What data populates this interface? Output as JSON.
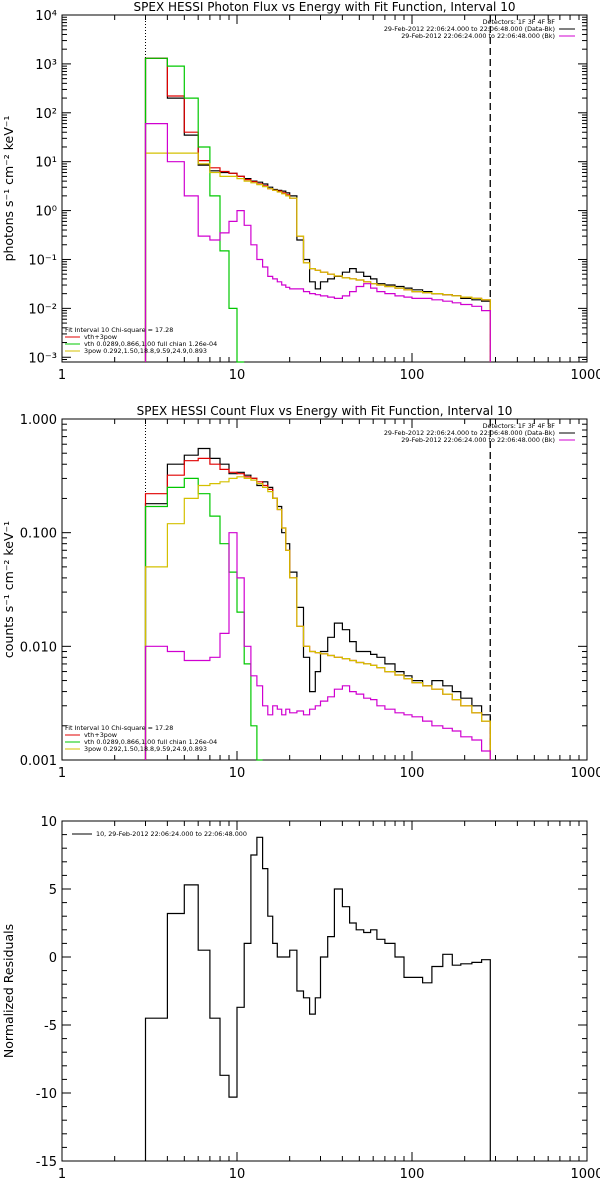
{
  "chart_data": [
    {
      "type": "line",
      "title": "SPEX HESSI Photon Flux vs Energy with Fit Function, Interval 10",
      "ylabel": "photons s⁻¹ cm⁻² keV⁻¹",
      "xlabel": "",
      "xscale": "log",
      "yscale": "log",
      "xlim": [
        1,
        1000
      ],
      "ylim": [
        0.0008,
        10000
      ],
      "x_ticks": [
        1,
        10,
        100,
        1000
      ],
      "x_tick_labels": [
        "1",
        "10",
        "100",
        "1000"
      ],
      "y_ticks": [
        0.001,
        0.01,
        0.1,
        1,
        10,
        100,
        1000,
        10000
      ],
      "y_tick_labels": [
        "10⁻³",
        "10⁻²",
        "10⁻¹",
        "10⁰",
        "10¹",
        "10²",
        "10³",
        "10⁴"
      ],
      "fit_range_lines": [
        3.0,
        280
      ],
      "legend_top_right": [
        "Detectors: 1F 3F 4F 8F",
        "29-Feb-2012 22:06:24.000 to 22:06:48.000 (Data-Bk)",
        "29-Feb-2012 22:06:24.000 to 22:06:48.000 (Bk)"
      ],
      "legend_bottom_left": {
        "header": "Fit Interval 10    Chi-square = 17.28",
        "entries": [
          "vth+3pow",
          "vth 0.0289,0.866,1.00  full chian 1.26e-04",
          "3pow 0.292,1.50,18.8,9.59,24.9,0.893"
        ]
      },
      "series": [
        {
          "color": "#000000",
          "edges": [
            3.0,
            4.0,
            5.0,
            6.0,
            7.0,
            8.0,
            9.0,
            10.0,
            11.0,
            12.0,
            13.0,
            14.0,
            15.0,
            16.0,
            17.0,
            18.0,
            19.0,
            20.0,
            22.0,
            24.0,
            26.0,
            28.0,
            30.0,
            33.0,
            36.0,
            40.0,
            44.0,
            48.0,
            53.0,
            58.0,
            63.0,
            70.0,
            80.0,
            90.0,
            100.0,
            115.0,
            130.0,
            150.0,
            170.0,
            190.0,
            220.0,
            250.0,
            280.0
          ],
          "values": [
            1300,
            200,
            35,
            8.5,
            6.5,
            6.0,
            5.8,
            5.0,
            4.5,
            4.0,
            3.8,
            3.5,
            3.0,
            2.7,
            2.6,
            2.5,
            2.3,
            2.0,
            0.25,
            0.1,
            0.035,
            0.025,
            0.035,
            0.04,
            0.045,
            0.055,
            0.065,
            0.055,
            0.045,
            0.04,
            0.032,
            0.03,
            0.028,
            0.026,
            0.024,
            0.022,
            0.02,
            0.019,
            0.018,
            0.016,
            0.015,
            0.014
          ]
        },
        {
          "color": "#e00000",
          "edges": [
            3.0,
            4.0,
            5.0,
            6.0,
            7.0,
            8.0,
            9.0,
            10.0,
            11.0,
            12.0,
            13.0,
            14.0,
            15.0,
            16.0,
            17.0,
            18.0,
            19.0,
            20.0,
            22.0,
            24.0,
            26.0,
            28.0,
            30.0,
            33.0,
            36.0,
            40.0,
            44.0,
            48.0,
            53.0,
            58.0,
            63.0,
            70.0,
            80.0,
            90.0,
            100.0,
            115.0,
            130.0,
            150.0,
            170.0,
            190.0,
            220.0,
            250.0,
            280.0
          ],
          "values": [
            1300,
            220,
            40,
            10.5,
            7.5,
            6.3,
            5.8,
            5.0,
            4.3,
            3.9,
            3.5,
            3.2,
            2.8,
            2.6,
            2.5,
            2.3,
            2.1,
            1.8,
            0.3,
            0.085,
            0.065,
            0.06,
            0.055,
            0.05,
            0.046,
            0.042,
            0.04,
            0.038,
            0.035,
            0.032,
            0.03,
            0.028,
            0.026,
            0.024,
            0.022,
            0.021,
            0.02,
            0.019,
            0.018,
            0.017,
            0.016,
            0.015
          ]
        },
        {
          "color": "#00c800",
          "edges": [
            3.0,
            4.0,
            5.0,
            6.0,
            7.0,
            8.0,
            9.0,
            10.0,
            11.0
          ],
          "values": [
            1300,
            900,
            200,
            20,
            2.0,
            0.15,
            0.01,
            0.0008
          ]
        },
        {
          "color": "#d4c000",
          "edges": [
            3.0,
            4.0,
            5.0,
            6.0,
            7.0,
            8.0,
            9.0,
            10.0,
            11.0,
            12.0,
            13.0,
            14.0,
            15.0,
            16.0,
            17.0,
            18.0,
            19.0,
            20.0,
            22.0,
            24.0,
            26.0,
            28.0,
            30.0,
            33.0,
            36.0,
            40.0,
            44.0,
            48.0,
            53.0,
            58.0,
            63.0,
            70.0,
            80.0,
            90.0,
            100.0,
            115.0,
            130.0,
            150.0,
            170.0,
            190.0,
            220.0,
            250.0,
            280.0
          ],
          "values": [
            15,
            15,
            15,
            9,
            6,
            5,
            5,
            4.5,
            4,
            3.7,
            3.4,
            3.1,
            2.8,
            2.6,
            2.4,
            2.2,
            2.0,
            1.8,
            0.3,
            0.085,
            0.065,
            0.06,
            0.055,
            0.05,
            0.046,
            0.042,
            0.04,
            0.038,
            0.035,
            0.032,
            0.03,
            0.028,
            0.026,
            0.024,
            0.022,
            0.021,
            0.02,
            0.019,
            0.018,
            0.017,
            0.016,
            0.015
          ]
        },
        {
          "color": "#d000d0",
          "edges": [
            3.0,
            4.0,
            5.0,
            6.0,
            7.0,
            8.0,
            9.0,
            10.0,
            11.0,
            12.0,
            13.0,
            14.0,
            15.0,
            16.0,
            17.0,
            18.0,
            19.0,
            20.0,
            22.0,
            24.0,
            26.0,
            28.0,
            30.0,
            33.0,
            36.0,
            40.0,
            44.0,
            48.0,
            53.0,
            58.0,
            63.0,
            70.0,
            80.0,
            90.0,
            100.0,
            115.0,
            130.0,
            150.0,
            170.0,
            190.0,
            220.0,
            250.0,
            280.0
          ],
          "values": [
            60,
            10,
            2.0,
            0.3,
            0.25,
            0.35,
            0.6,
            1.0,
            0.5,
            0.2,
            0.1,
            0.07,
            0.045,
            0.04,
            0.035,
            0.03,
            0.027,
            0.025,
            0.025,
            0.022,
            0.02,
            0.019,
            0.018,
            0.017,
            0.016,
            0.018,
            0.022,
            0.028,
            0.032,
            0.026,
            0.022,
            0.02,
            0.018,
            0.017,
            0.016,
            0.016,
            0.015,
            0.014,
            0.013,
            0.012,
            0.011,
            0.009
          ]
        }
      ]
    },
    {
      "type": "line",
      "title": "SPEX HESSI Count Flux vs Energy with Fit Function, Interval 10",
      "ylabel": "counts s⁻¹ cm⁻² keV⁻¹",
      "xlabel": "",
      "xscale": "log",
      "yscale": "log",
      "xlim": [
        1,
        1000
      ],
      "ylim": [
        0.001,
        1
      ],
      "x_ticks": [
        1,
        10,
        100,
        1000
      ],
      "x_tick_labels": [
        "1",
        "10",
        "100",
        "1000"
      ],
      "y_ticks": [
        0.001,
        0.01,
        0.1,
        1
      ],
      "y_tick_labels": [
        "0.001",
        "0.010",
        "0.100",
        "1.000"
      ],
      "fit_range_lines": [
        3.0,
        280
      ],
      "legend_top_right": [
        "Detectors: 1F 3F 4F 8F",
        "29-Feb-2012 22:06:24.000 to 22:06:48.000 (Data-Bk)",
        "29-Feb-2012 22:06:24.000 to 22:06:48.000 (Bk)"
      ],
      "legend_bottom_left": {
        "header": "Fit Interval 10    Chi-square = 17.28",
        "entries": [
          "vth+3pow",
          "vth 0.0289,0.866,1.00  full chian 1.26e-04",
          "3pow 0.292,1.50,18.8,9.59,24.9,0.893"
        ]
      },
      "series": [
        {
          "color": "#000000",
          "edges": [
            3.0,
            4.0,
            5.0,
            6.0,
            7.0,
            8.0,
            9.0,
            10.0,
            11.0,
            12.0,
            13.0,
            14.0,
            15.0,
            16.0,
            17.0,
            18.0,
            19.0,
            20.0,
            22.0,
            24.0,
            26.0,
            28.0,
            30.0,
            33.0,
            36.0,
            40.0,
            44.0,
            48.0,
            53.0,
            58.0,
            63.0,
            70.0,
            80.0,
            90.0,
            100.0,
            115.0,
            130.0,
            150.0,
            170.0,
            190.0,
            220.0,
            250.0,
            280.0
          ],
          "values": [
            0.18,
            0.4,
            0.48,
            0.55,
            0.45,
            0.4,
            0.33,
            0.34,
            0.32,
            0.3,
            0.26,
            0.28,
            0.25,
            0.2,
            0.17,
            0.1,
            0.08,
            0.045,
            0.022,
            0.008,
            0.004,
            0.006,
            0.009,
            0.012,
            0.016,
            0.014,
            0.011,
            0.009,
            0.009,
            0.0085,
            0.008,
            0.007,
            0.006,
            0.0055,
            0.005,
            0.0045,
            0.005,
            0.0045,
            0.004,
            0.0035,
            0.003,
            0.0025
          ]
        },
        {
          "color": "#e00000",
          "edges": [
            3.0,
            4.0,
            5.0,
            6.0,
            7.0,
            8.0,
            9.0,
            10.0,
            11.0,
            12.0,
            13.0,
            14.0,
            15.0,
            16.0,
            17.0,
            18.0,
            19.0,
            20.0,
            22.0,
            24.0,
            26.0,
            28.0,
            30.0,
            33.0,
            36.0,
            40.0,
            44.0,
            48.0,
            53.0,
            58.0,
            63.0,
            70.0,
            80.0,
            90.0,
            100.0,
            115.0,
            130.0,
            150.0,
            170.0,
            190.0,
            220.0,
            250.0,
            280.0
          ],
          "values": [
            0.22,
            0.32,
            0.43,
            0.45,
            0.4,
            0.36,
            0.34,
            0.33,
            0.31,
            0.3,
            0.28,
            0.26,
            0.24,
            0.2,
            0.16,
            0.11,
            0.07,
            0.04,
            0.015,
            0.01,
            0.009,
            0.0088,
            0.0086,
            0.0083,
            0.008,
            0.0078,
            0.0075,
            0.0072,
            0.007,
            0.0068,
            0.0065,
            0.006,
            0.0056,
            0.0052,
            0.0048,
            0.0045,
            0.0042,
            0.0038,
            0.0034,
            0.003,
            0.0026,
            0.0022
          ]
        },
        {
          "color": "#00c800",
          "edges": [
            3.0,
            4.0,
            5.0,
            6.0,
            7.0,
            8.0,
            9.0,
            10.0,
            11.0,
            12.0,
            13.0,
            14.0
          ],
          "values": [
            0.17,
            0.25,
            0.3,
            0.22,
            0.14,
            0.08,
            0.045,
            0.02,
            0.007,
            0.002,
            0.0008
          ]
        },
        {
          "color": "#d4c000",
          "edges": [
            3.0,
            4.0,
            5.0,
            6.0,
            7.0,
            8.0,
            9.0,
            10.0,
            11.0,
            12.0,
            13.0,
            14.0,
            15.0,
            16.0,
            17.0,
            18.0,
            19.0,
            20.0,
            22.0,
            24.0,
            26.0,
            28.0,
            30.0,
            33.0,
            36.0,
            40.0,
            44.0,
            48.0,
            53.0,
            58.0,
            63.0,
            70.0,
            80.0,
            90.0,
            100.0,
            115.0,
            130.0,
            150.0,
            170.0,
            190.0,
            220.0,
            250.0,
            280.0
          ],
          "values": [
            0.05,
            0.12,
            0.2,
            0.26,
            0.27,
            0.28,
            0.3,
            0.31,
            0.3,
            0.29,
            0.27,
            0.25,
            0.23,
            0.2,
            0.16,
            0.11,
            0.07,
            0.04,
            0.015,
            0.01,
            0.009,
            0.0088,
            0.0086,
            0.0083,
            0.008,
            0.0078,
            0.0075,
            0.0072,
            0.007,
            0.0068,
            0.0065,
            0.006,
            0.0056,
            0.0052,
            0.0048,
            0.0045,
            0.0042,
            0.0038,
            0.0034,
            0.003,
            0.0026,
            0.0022
          ]
        },
        {
          "color": "#d000d0",
          "edges": [
            3.0,
            4.0,
            5.0,
            6.0,
            7.0,
            8.0,
            9.0,
            10.0,
            11.0,
            12.0,
            13.0,
            14.0,
            15.0,
            16.0,
            17.0,
            18.0,
            19.0,
            20.0,
            22.0,
            24.0,
            26.0,
            28.0,
            30.0,
            33.0,
            36.0,
            40.0,
            44.0,
            48.0,
            53.0,
            58.0,
            63.0,
            70.0,
            80.0,
            90.0,
            100.0,
            115.0,
            130.0,
            150.0,
            170.0,
            190.0,
            220.0,
            250.0,
            280.0
          ],
          "values": [
            0.01,
            0.009,
            0.0075,
            0.0075,
            0.008,
            0.013,
            0.1,
            0.04,
            0.01,
            0.0055,
            0.0045,
            0.003,
            0.0025,
            0.003,
            0.0028,
            0.0025,
            0.0028,
            0.0026,
            0.0027,
            0.0025,
            0.0028,
            0.003,
            0.0033,
            0.0036,
            0.0042,
            0.0045,
            0.004,
            0.0038,
            0.0035,
            0.0034,
            0.003,
            0.0028,
            0.0026,
            0.0025,
            0.0024,
            0.0022,
            0.002,
            0.0019,
            0.0018,
            0.0016,
            0.0015,
            0.0012
          ]
        }
      ]
    },
    {
      "type": "line",
      "title": "",
      "ylabel": "Normalized Residuals",
      "xlabel": "",
      "xscale": "log",
      "yscale": "linear",
      "xlim": [
        1,
        1000
      ],
      "ylim": [
        -15,
        10
      ],
      "x_ticks": [
        1,
        10,
        100,
        1000
      ],
      "x_tick_labels": [
        "1",
        "10",
        "100",
        "1000"
      ],
      "y_ticks": [
        -15,
        -10,
        -5,
        0,
        5,
        10
      ],
      "y_tick_labels": [
        "-15",
        "-10",
        "-5",
        "0",
        "5",
        "10"
      ],
      "legend": "10, 29-Feb-2012 22:06:24.000 to 22:06:48.000",
      "series": [
        {
          "color": "#000000",
          "edges": [
            3.0,
            4.0,
            5.0,
            6.0,
            7.0,
            8.0,
            9.0,
            10.0,
            11.0,
            12.0,
            13.0,
            14.0,
            15.0,
            16.0,
            17.0,
            18.0,
            19.0,
            20.0,
            22.0,
            24.0,
            26.0,
            28.0,
            30.0,
            33.0,
            36.0,
            40.0,
            44.0,
            48.0,
            53.0,
            58.0,
            63.0,
            70.0,
            80.0,
            90.0,
            100.0,
            115.0,
            130.0,
            150.0,
            170.0,
            190.0,
            220.0,
            250.0,
            280.0
          ],
          "values": [
            -4.5,
            3.2,
            5.3,
            0.5,
            -4.5,
            -8.7,
            -10.3,
            -3.7,
            1.0,
            7.5,
            8.8,
            6.5,
            3.0,
            1.0,
            0.0,
            0.0,
            0.0,
            0.5,
            -2.5,
            -3.0,
            -4.2,
            -3.0,
            0.0,
            1.5,
            5.0,
            3.7,
            2.5,
            2.0,
            1.8,
            2.0,
            1.3,
            1.0,
            0.0,
            -1.5,
            -1.5,
            -1.9,
            -0.7,
            0.2,
            -0.6,
            -0.5,
            -0.4,
            -0.2
          ]
        }
      ]
    }
  ]
}
